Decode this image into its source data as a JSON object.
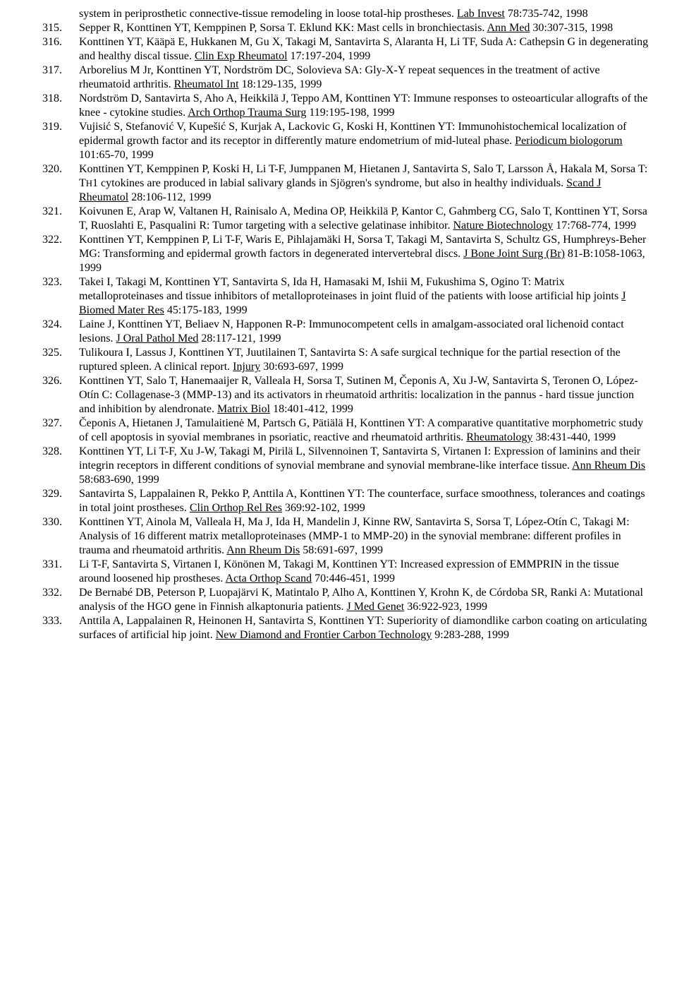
{
  "references": [
    {
      "num": "",
      "segments": [
        {
          "t": "system in periprosthetic connective-tissue remodeling in loose total-hip prostheses. "
        },
        {
          "t": "Lab Invest",
          "u": true
        },
        {
          "t": " 78:735-742, 1998"
        }
      ]
    },
    {
      "num": "315.",
      "segments": [
        {
          "t": "Sepper R, Konttinen YT, Kemppinen P, Sorsa T. Eklund KK: Mast cells in bronchiectasis. "
        },
        {
          "t": "Ann Med",
          "u": true
        },
        {
          "t": " 30:307-315, 1998"
        }
      ]
    },
    {
      "num": "316.",
      "segments": [
        {
          "t": "Konttinen YT, Kääpä E, Hukkanen M, Gu X, Takagi M, Santavirta S, Alaranta H, Li TF, Suda A: Cathepsin G in degenerating and healthy discal tissue. "
        },
        {
          "t": "Clin Exp Rheumatol",
          "u": true
        },
        {
          "t": " 17:197-204, 1999"
        }
      ]
    },
    {
      "num": "317.",
      "segments": [
        {
          "t": "Arborelius M Jr, Konttinen YT, Nordström DC, Solovieva SA: Gly-X-Y repeat sequences in the treatment of active rheumatoid arthritis. "
        },
        {
          "t": "Rheumatol Int",
          "u": true
        },
        {
          "t": " 18:129-135, 1999"
        }
      ]
    },
    {
      "num": "318.",
      "segments": [
        {
          "t": "Nordström D, Santavirta S, Aho A, Heikkilä J, Teppo AM, Konttinen YT: Immune responses to osteoarticular allografts of the knee - cytokine studies. "
        },
        {
          "t": "Arch Orthop Trauma Surg",
          "u": true
        },
        {
          "t": " 119:195-198, 1999"
        }
      ]
    },
    {
      "num": "319.",
      "segments": [
        {
          "t": "Vujisić S, Stefanović V, Kupešić S, Kurjak A, Lackovic G, Koski H, Konttinen YT: Immunohistochemical localization of epidermal growth factor and its receptor in differently mature endometrium of mid-luteal phase. "
        },
        {
          "t": "Periodicum biologorum",
          "u": true
        },
        {
          "t": " 101:65-70, 1999"
        }
      ]
    },
    {
      "num": "320.",
      "segments": [
        {
          "t": "Konttinen YT, Kemppinen P, Koski H, Li T-F, Jumppanen M, Hietanen J, Santavirta S, Salo T, Larsson Å, Hakala M, Sorsa T: T"
        },
        {
          "t": "H",
          "sub": true
        },
        {
          "t": "1 cytokines are produced in labial salivary glands in Sjögren's syndrome, but also in healthy individuals. "
        },
        {
          "t": "Scand J Rheumatol",
          "u": true
        },
        {
          "t": " 28:106-112, 1999"
        }
      ]
    },
    {
      "num": "321.",
      "segments": [
        {
          "t": "Koivunen E, Arap W, Valtanen H, Rainisalo A, Medina OP, Heikkilä P, Kantor C, Gahmberg CG, Salo T, Konttinen YT, Sorsa T, Ruoslahti E, Pasqualini R: Tumor targeting with a selective gelatinase inhibitor. "
        },
        {
          "t": "Nature Biotechnology",
          "u": true
        },
        {
          "t": " 17:768-774, 1999"
        }
      ]
    },
    {
      "num": "322.",
      "segments": [
        {
          "t": "Konttinen YT, Kemppinen P, Li T-F, Waris E, Pihlajamäki H, Sorsa T, Takagi M, Santavirta S, Schultz GS, Humphreys-Beher MG: Transforming and epidermal growth factors in degenerated intervertebral discs. "
        },
        {
          "t": "J Bone Joint Surg (Br)",
          "u": true
        },
        {
          "t": " 81-B:1058-1063, 1999"
        }
      ]
    },
    {
      "num": "323.",
      "segments": [
        {
          "t": "Takei I, Takagi M, Konttinen YT, Santavirta S, Ida H, Hamasaki M, Ishii M, Fukushima S, Ogino T: Matrix metalloproteinases and tissue inhibitors of metalloproteinases in joint fluid of the patients with loose artificial hip joints "
        },
        {
          "t": "J Biomed Mater Res",
          "u": true
        },
        {
          "t": " 45:175-183, 1999"
        }
      ]
    },
    {
      "num": "324.",
      "segments": [
        {
          "t": "Laine J, Konttinen YT, Beliaev N, Happonen R-P: Immunocompetent cells in amalgam-associated oral lichenoid contact lesions. "
        },
        {
          "t": "J Oral Pathol Med",
          "u": true
        },
        {
          "t": " 28:117-121, 1999"
        }
      ]
    },
    {
      "num": "325.",
      "segments": [
        {
          "t": "Tulikoura I, Lassus J, Konttinen YT, Juutilainen T, Santavirta S: A safe surgical technique for the partial resection of the ruptured spleen. A clinical report. "
        },
        {
          "t": "Injury",
          "u": true
        },
        {
          "t": " 30:693-697, 1999"
        }
      ]
    },
    {
      "num": "326.",
      "segments": [
        {
          "t": "Konttinen YT, Salo T, Hanemaaijer R, Valleala H, Sorsa T, Sutinen M, Čeponis A, Xu J-W, Santavirta S, Teronen O, López-Otín C: Collagenase-3 (MMP-13) and its activators in rheumatoid arthritis: localization in the pannus - hard tissue junction and inhibition by alendronate. "
        },
        {
          "t": "Matrix Biol",
          "u": true
        },
        {
          "t": " 18:401-412, 1999"
        }
      ]
    },
    {
      "num": "327.",
      "segments": [
        {
          "t": "Čeponis A, Hietanen J, Tamulaitienė M, Partsch G, Pätiälä H, Konttinen YT: A comparative quantitative morphometric study of cell apoptosis in syovial membranes in psoriatic, reactive  and rheumatoid arthritis. "
        },
        {
          "t": "Rheumatology",
          "u": true
        },
        {
          "t": " 38:431-440, 1999"
        }
      ]
    },
    {
      "num": "328.",
      "segments": [
        {
          "t": "Konttinen YT, Li T-F, Xu J-W, Takagi M, Pirilä L, Silvennoinen T, Santavirta S, Virtanen I: Expression of laminins and their integrin receptors in different conditions of synovial membrane and synovial membrane-like interface tissue. "
        },
        {
          "t": "Ann Rheum Dis",
          "u": true
        },
        {
          "t": " 58:683-690, 1999"
        }
      ]
    },
    {
      "num": "329.",
      "segments": [
        {
          "t": "Santavirta S, Lappalainen R, Pekko P, Anttila A, Konttinen YT: The counterface, surface smoothness, tolerances and coatings in total joint prostheses. "
        },
        {
          "t": "Clin Orthop Rel Res",
          "u": true
        },
        {
          "t": " 369:92-102, 1999"
        }
      ]
    },
    {
      "num": "330.",
      "segments": [
        {
          "t": "Konttinen YT, Ainola M, Valleala H, Ma J, Ida H, Mandelin J, Kinne RW, Santavirta S, Sorsa T, López-Otín C, Takagi M: Analysis of 16 different matrix metalloproteinases (MMP-1 to MMP-20) in the synovial membrane: different profiles in trauma and rheumatoid arthritis. "
        },
        {
          "t": "Ann Rheum Dis",
          "u": true
        },
        {
          "t": " 58:691-697, 1999"
        }
      ]
    },
    {
      "num": "331.",
      "segments": [
        {
          "t": "Li T-F, Santavirta S, Virtanen I, Könönen M, Takagi M, Konttinen YT: Increased expression of EMMPRIN in the tissue around loosened hip prostheses. "
        },
        {
          "t": "Acta Orthop Scand",
          "u": true
        },
        {
          "t": " 70:446-451, 1999"
        }
      ]
    },
    {
      "num": "332.",
      "segments": [
        {
          "t": "De Bernabé DB, Peterson P, Luopajärvi K, Matintalo P, Alho A, Konttinen Y, Krohn K, de Córdoba SR, Ranki A: Mutational analysis of the HGO gene in Finnish alkaptonuria patients. "
        },
        {
          "t": "J Med Genet",
          "u": true
        },
        {
          "t": " 36:922-923, 1999"
        }
      ]
    },
    {
      "num": "333.",
      "segments": [
        {
          "t": "Anttila A, Lappalainen R, Heinonen H, Santavirta S, Konttinen YT: Superiority of diamondlike carbon coating on articulating surfaces of artificial hip joint. "
        },
        {
          "t": "New Diamond and Frontier Carbon Technology",
          "u": true
        },
        {
          "t": " 9:283-288, 1999"
        }
      ]
    }
  ]
}
